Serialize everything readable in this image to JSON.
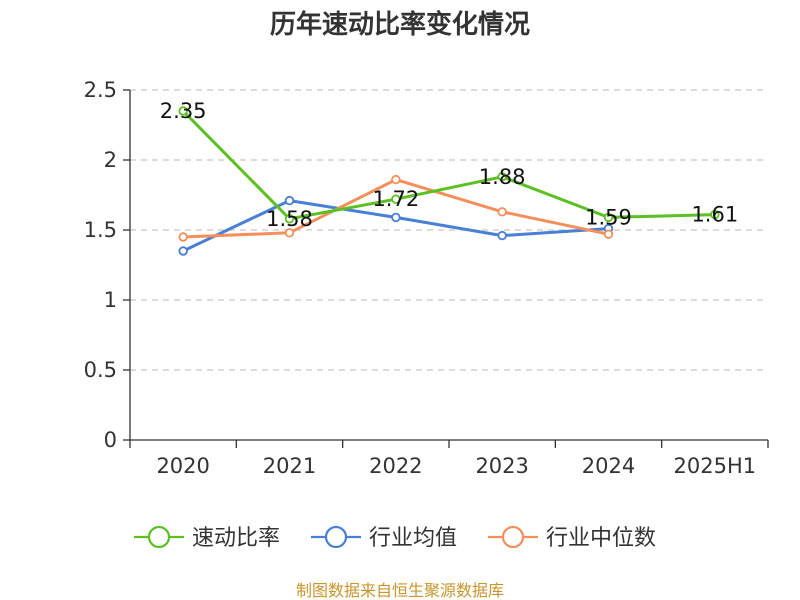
{
  "chart_data": {
    "type": "line",
    "title": "历年速动比率变化情况",
    "categories": [
      "2020",
      "2021",
      "2022",
      "2023",
      "2024",
      "2025H1"
    ],
    "ylim": [
      0,
      2.5
    ],
    "yticks": [
      "0",
      "0.5",
      "1",
      "1.5",
      "2",
      "2.5"
    ],
    "grid": true,
    "legend_position": "bottom",
    "series": [
      {
        "name": "速动比率",
        "color": "#5bc021",
        "values": [
          2.35,
          1.58,
          1.72,
          1.88,
          1.59,
          1.61
        ],
        "labels": [
          "2.35",
          "1.58",
          "1.72",
          "1.88",
          "1.59",
          "1.61"
        ]
      },
      {
        "name": "行业均值",
        "color": "#4a7fd6",
        "values": [
          1.35,
          1.71,
          1.59,
          1.46,
          1.51,
          null
        ]
      },
      {
        "name": "行业中位数",
        "color": "#f58f5a",
        "values": [
          1.45,
          1.48,
          1.86,
          1.63,
          1.47,
          null
        ]
      }
    ]
  },
  "footer": {
    "source": "制图数据来自恒生聚源数据库"
  }
}
